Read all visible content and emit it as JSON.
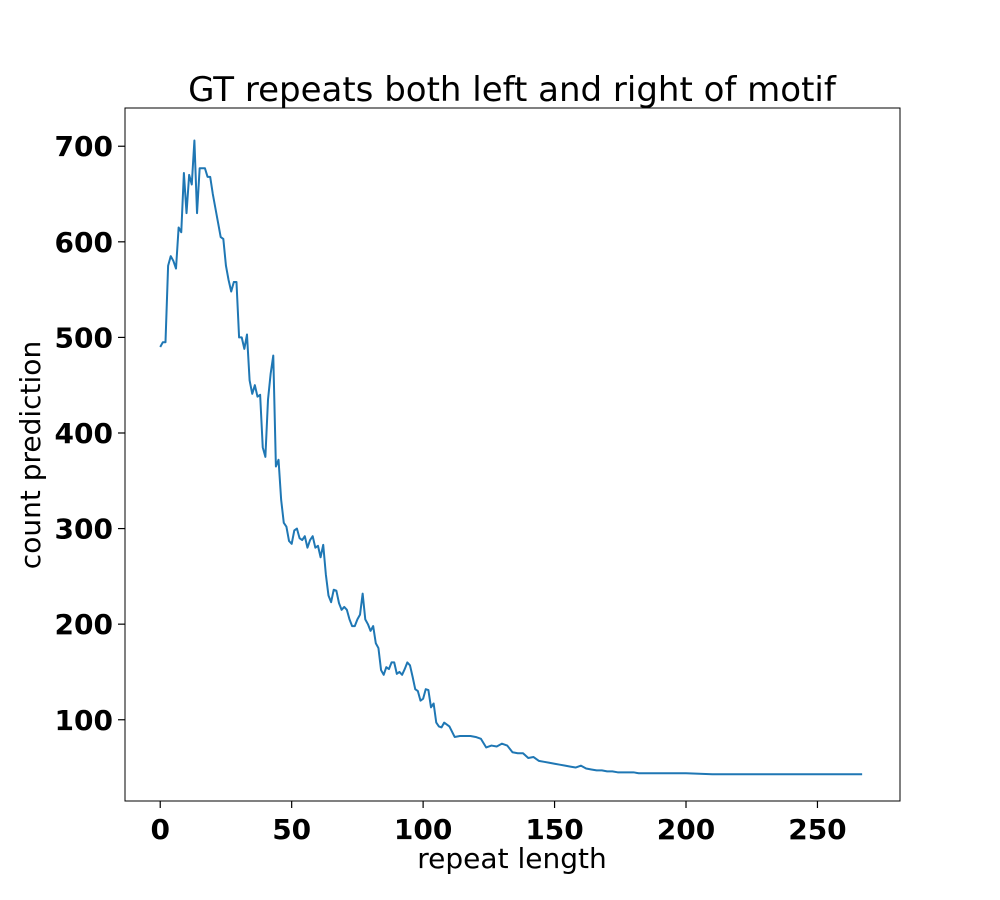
{
  "chart_data": {
    "type": "line",
    "title": "GT repeats both left and right of motif",
    "xlabel": "repeat length",
    "ylabel": "count prediction",
    "xlim": [
      -13.4,
      281.4
    ],
    "ylim": [
      15,
      740
    ],
    "xticks": [
      0,
      50,
      100,
      150,
      200,
      250
    ],
    "yticks": [
      100,
      200,
      300,
      400,
      500,
      600,
      700
    ],
    "grid": false,
    "series": [
      {
        "color": "#1f77b4",
        "x": [
          0,
          1,
          2,
          3,
          4,
          5,
          6,
          7,
          8,
          9,
          10,
          11,
          12,
          13,
          14,
          15,
          16,
          17,
          18,
          19,
          20,
          21,
          22,
          23,
          24,
          25,
          26,
          27,
          28,
          29,
          30,
          31,
          32,
          33,
          34,
          35,
          36,
          37,
          38,
          39,
          40,
          41,
          42,
          43,
          44,
          45,
          46,
          47,
          48,
          49,
          50,
          51,
          52,
          53,
          54,
          55,
          56,
          57,
          58,
          59,
          60,
          61,
          62,
          63,
          64,
          65,
          66,
          67,
          68,
          69,
          70,
          71,
          72,
          73,
          74,
          75,
          76,
          77,
          78,
          79,
          80,
          81,
          82,
          83,
          84,
          85,
          86,
          87,
          88,
          89,
          90,
          91,
          92,
          93,
          94,
          95,
          96,
          97,
          98,
          99,
          100,
          101,
          102,
          103,
          104,
          105,
          106,
          107,
          108,
          110,
          112,
          114,
          116,
          118,
          120,
          122,
          124,
          126,
          128,
          130,
          132,
          134,
          136,
          138,
          140,
          142,
          144,
          146,
          148,
          150,
          152,
          154,
          156,
          158,
          160,
          162,
          164,
          166,
          168,
          170,
          172,
          174,
          176,
          178,
          180,
          182,
          185,
          190,
          195,
          200,
          210,
          220,
          230,
          240,
          250,
          260,
          267
        ],
        "y": [
          490,
          495,
          495,
          575,
          585,
          580,
          572,
          615,
          610,
          672,
          630,
          670,
          660,
          706,
          630,
          677,
          677,
          677,
          668,
          668,
          650,
          635,
          620,
          605,
          603,
          575,
          560,
          548,
          558,
          558,
          500,
          500,
          488,
          503,
          455,
          441,
          450,
          438,
          440,
          385,
          375,
          435,
          462,
          481,
          365,
          372,
          330,
          306,
          302,
          287,
          284,
          298,
          300,
          290,
          288,
          292,
          280,
          288,
          292,
          280,
          282,
          270,
          283,
          252,
          230,
          223,
          236,
          235,
          222,
          215,
          218,
          215,
          205,
          198,
          198,
          205,
          210,
          232,
          205,
          200,
          193,
          198,
          180,
          175,
          152,
          147,
          155,
          153,
          160,
          160,
          148,
          150,
          147,
          153,
          160,
          157,
          145,
          132,
          130,
          120,
          122,
          132,
          131,
          113,
          117,
          97,
          93,
          92,
          97,
          93,
          82,
          83,
          83,
          83,
          82,
          80,
          71,
          73,
          72,
          75,
          73,
          66,
          65,
          65,
          60,
          61,
          57,
          56,
          55,
          54,
          53,
          52,
          51,
          50,
          52,
          49,
          48,
          47,
          47,
          46,
          46,
          45,
          45,
          45,
          45,
          44,
          44,
          44,
          44,
          44,
          43,
          43,
          43,
          43,
          43,
          43,
          43
        ]
      }
    ]
  }
}
